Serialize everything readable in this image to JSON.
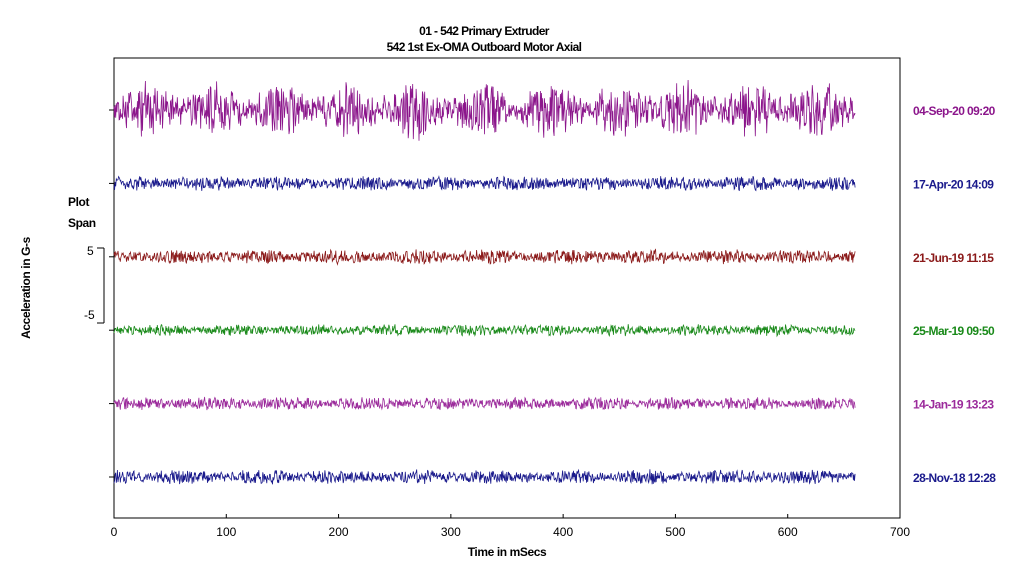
{
  "chart_data": {
    "type": "line",
    "title": "01   - 542 Primary Extruder",
    "subtitle": "542 1st Ex-OMA   Outboard Motor Axial",
    "xlabel": "Time in mSecs",
    "ylabel": "Acceleration in G-s",
    "xlim": [
      0,
      700
    ],
    "x_ticks": [
      "0",
      "100",
      "200",
      "300",
      "400",
      "500",
      "600",
      "700"
    ],
    "plot_span": {
      "title_line1": "Plot",
      "title_line2": "Span",
      "top": "5",
      "bottom": "-5",
      "value_top": 5,
      "value_bottom": -5
    },
    "grid": false,
    "record_length_ms": 660,
    "series": [
      {
        "name": "04-Sep-20  09:20",
        "color": "#8B158B",
        "amplitude_g": 4.0
      },
      {
        "name": "17-Apr-20  14:09",
        "color": "#1A1A8C",
        "amplitude_g": 0.9
      },
      {
        "name": "21-Jun-19  11:15",
        "color": "#8B1A1A",
        "amplitude_g": 0.9
      },
      {
        "name": "25-Mar-19  09:50",
        "color": "#1A8A1A",
        "amplitude_g": 0.7
      },
      {
        "name": "14-Jan-19  13:23",
        "color": "#9B2A9B",
        "amplitude_g": 0.8
      },
      {
        "name": "28-Nov-18  12:28",
        "color": "#1A1A8C",
        "amplitude_g": 0.9
      }
    ]
  }
}
